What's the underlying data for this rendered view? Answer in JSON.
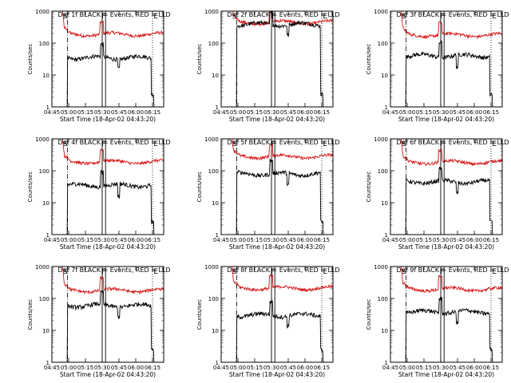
{
  "chart_data": {
    "type": "line",
    "x_tick_labels": [
      "04:45",
      "05:00",
      "05:15",
      "05:30",
      "05:45",
      "06:00",
      "06:15"
    ],
    "y_tick_labels": [
      "1",
      "10",
      "100",
      "1000"
    ],
    "ylim": [
      1,
      1000
    ],
    "log_y": true,
    "ylabel": "Counts/sec",
    "xlabel": "Start Time (18-Apr-02 04:43:20)",
    "marker_labels": [
      "S",
      "F",
      "E"
    ],
    "colors": {
      "events": "#000000",
      "lld": "#d81414"
    },
    "panels": [
      {
        "title": "Det 1f BLACK = Events, RED = LLD",
        "lld_level": 190,
        "events_level": 35
      },
      {
        "title": "Det 2f BLACK = Events, RED = LLD",
        "lld_level": 450,
        "events_level": 390
      },
      {
        "title": "Det 3f BLACK = Events, RED = LLD",
        "lld_level": 180,
        "events_level": 40
      },
      {
        "title": "Det 4f BLACK = Events, RED = LLD",
        "lld_level": 190,
        "events_level": 35
      },
      {
        "title": "Det 5f BLACK = Events, RED = LLD",
        "lld_level": 280,
        "events_level": 80
      },
      {
        "title": "Det 6f BLACK = Events, RED = LLD",
        "lld_level": 185,
        "events_level": 45
      },
      {
        "title": "Det 7f BLACK = Events, RED = LLD",
        "lld_level": 180,
        "events_level": 60
      },
      {
        "title": "Det 8f BLACK = Events, RED = LLD",
        "lld_level": 210,
        "events_level": 30
      },
      {
        "title": "Det 9f BLACK = Events, RED = LLD",
        "lld_level": 195,
        "events_level": 38
      }
    ]
  }
}
